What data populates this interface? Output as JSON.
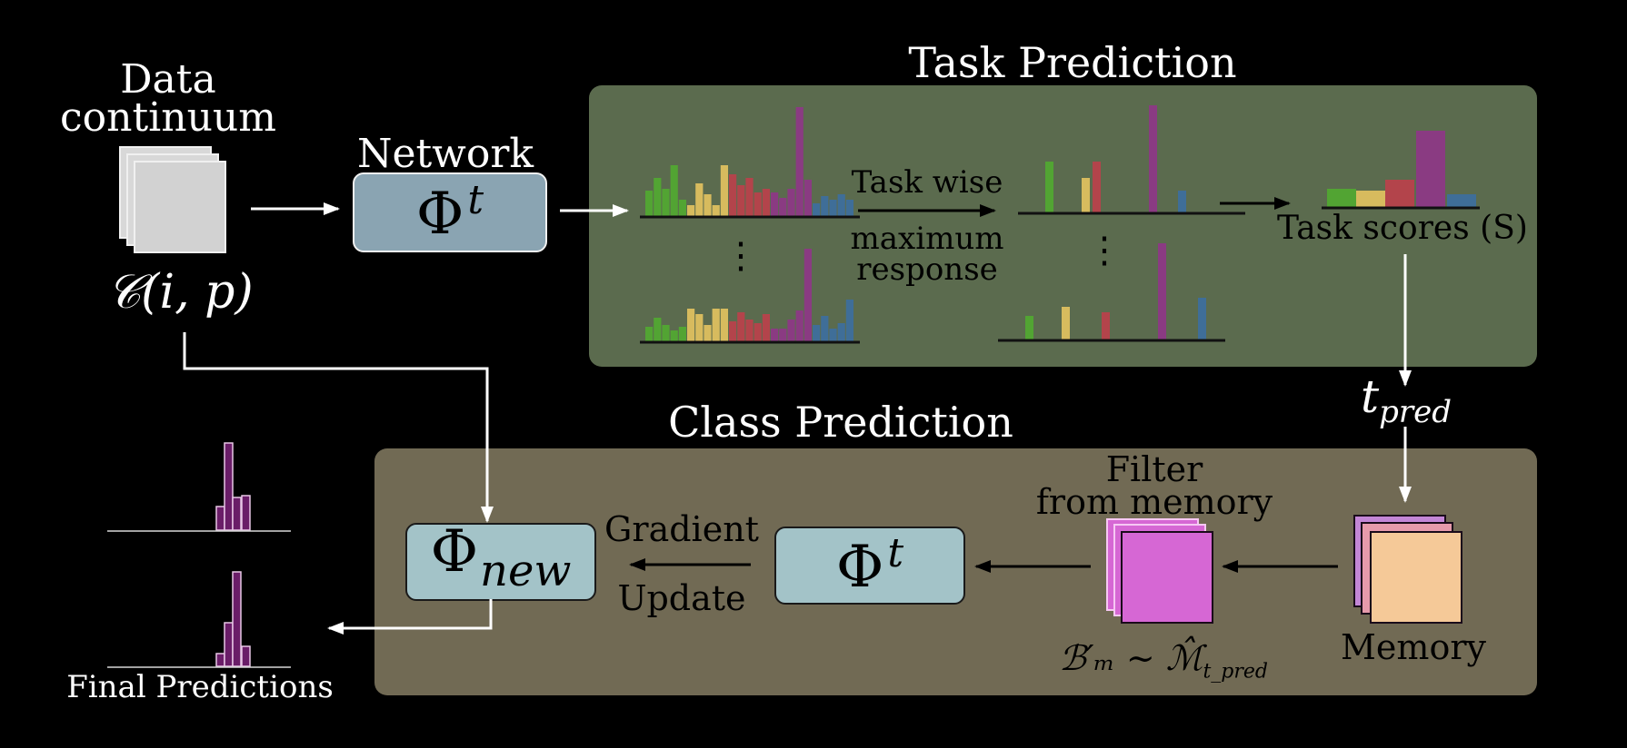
{
  "colors": {
    "background": "#000000",
    "task_panel": "#5b6b4e",
    "class_panel": "#716a54",
    "network_box": "#8aa4b2",
    "phi_box": "#a3c3c8",
    "green": "#52a433",
    "yellow": "#d7bb5e",
    "red": "#b3444b",
    "purple": "#8a3b82",
    "blue": "#3f6e98",
    "final_purple": "#6a1d68",
    "filter_memory": "#d667d4",
    "memory_peach": "#f5c998",
    "memory_pink": "#e69aab",
    "memory_violet": "#c386d6"
  },
  "labels": {
    "data_continuum_line1": "Data",
    "data_continuum_line2": "continuum",
    "data_symbol": "𝒞(i, p)",
    "network_label": "Network",
    "network_symbol_base": "Φ",
    "network_symbol_sup": "t",
    "task_prediction_title": "Task Prediction",
    "task_wise_line1": "Task wise",
    "task_wise_line2": "maximum",
    "task_wise_line3": "response",
    "task_scores": "Task scores (S)",
    "dots": "⋮",
    "t_pred_base": "t",
    "t_pred_sub": "pred",
    "class_prediction_title": "Class Prediction",
    "filter_line1": "Filter",
    "filter_line2": "from memory",
    "buffer_formula": "ℬ′ₘ ∼ ℳ̂",
    "buffer_formula_sub": "t_pred",
    "memory_label": "Memory",
    "phi_t_base": "Φ",
    "phi_t_sup": "t",
    "gradient_line1": "Gradient",
    "gradient_line2": "Update",
    "phi_new_base": "Φ",
    "phi_new_sub": "new",
    "final_predictions": "Final Predictions"
  }
}
